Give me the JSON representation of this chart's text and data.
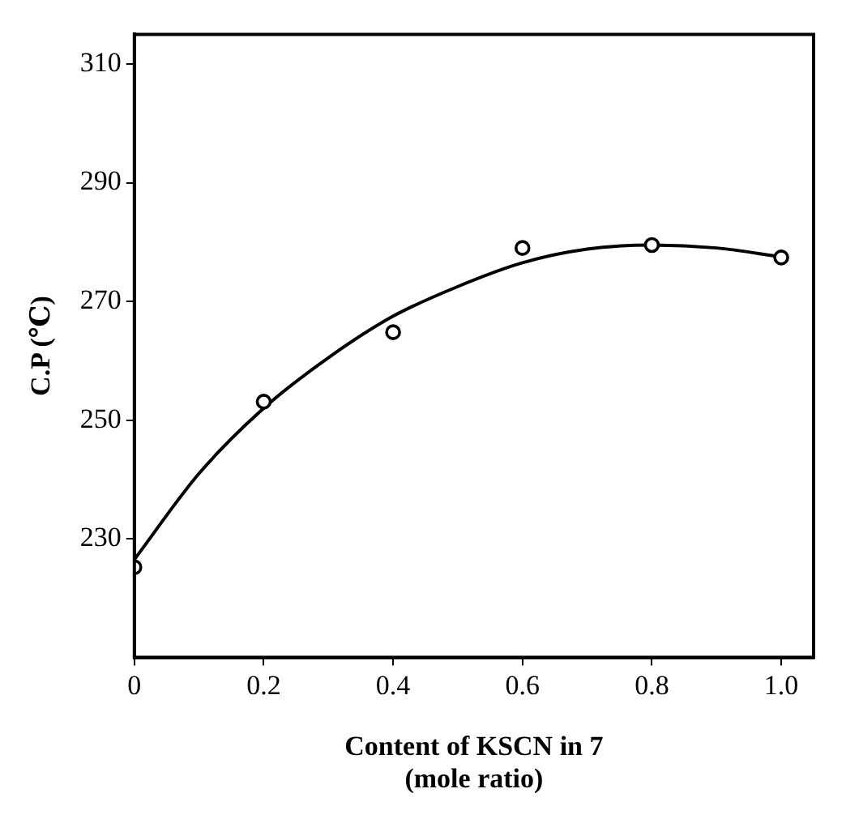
{
  "chart_data": {
    "type": "scatter",
    "xlabel": "Content of KSCN in 7\n(mole ratio)",
    "ylabel": "C.P (℃)",
    "xlim": [
      0,
      1.05
    ],
    "xticks": [
      {
        "value": 0,
        "label": "0"
      },
      0.2,
      0.4,
      0.6,
      0.8,
      {
        "value": 1,
        "label": "1.0"
      }
    ],
    "ylim": [
      210,
      315
    ],
    "yticks": [
      230,
      250,
      270,
      290,
      310
    ],
    "grid": false,
    "legend": false,
    "marker": "circle",
    "series": [
      {
        "type": "scatter",
        "color": "#000000",
        "x": [
          0,
          0.2,
          0.4,
          0.6,
          0.8,
          1.0
        ],
        "values": [
          225.2,
          253.1,
          264.8,
          279.0,
          279.5,
          277.4
        ]
      },
      {
        "type": "line",
        "color": "#000000",
        "marker": "none",
        "x": [
          0,
          0.1,
          0.2,
          0.3,
          0.4,
          0.5,
          0.6,
          0.7,
          0.8,
          0.9,
          1.0
        ],
        "values": [
          226.5,
          241,
          252,
          260.5,
          267.5,
          272.5,
          276.5,
          278.8,
          279.5,
          279,
          277.5
        ]
      }
    ]
  }
}
